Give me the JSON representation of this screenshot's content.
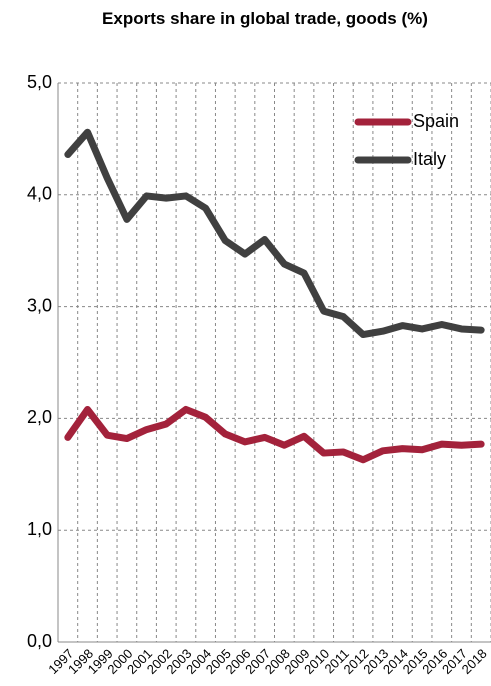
{
  "chart_data": {
    "type": "line",
    "title": "Exports share in global trade, goods (%)",
    "categories": [
      "1997",
      "1998",
      "1999",
      "2000",
      "2001",
      "2002",
      "2003",
      "2004",
      "2005",
      "2006",
      "2007",
      "2008",
      "2009",
      "2010",
      "2011",
      "2012",
      "2013",
      "2014",
      "2015",
      "2016",
      "2017",
      "2018"
    ],
    "series": [
      {
        "name": "Spain",
        "color": "#a3223b",
        "values": [
          1.83,
          2.08,
          1.85,
          1.82,
          1.9,
          1.95,
          2.08,
          2.01,
          1.86,
          1.79,
          1.83,
          1.76,
          1.84,
          1.69,
          1.7,
          1.63,
          1.71,
          1.73,
          1.72,
          1.77,
          1.76,
          1.77
        ]
      },
      {
        "name": "Italy",
        "color": "#404040",
        "values": [
          4.36,
          4.56,
          4.15,
          3.78,
          3.99,
          3.97,
          3.99,
          3.88,
          3.59,
          3.47,
          3.6,
          3.38,
          3.3,
          2.96,
          2.91,
          2.75,
          2.78,
          2.83,
          2.8,
          2.84,
          2.8,
          2.79
        ]
      }
    ],
    "ylim": [
      0,
      5
    ],
    "yticks": [
      {
        "value": 0,
        "label": "0,0"
      },
      {
        "value": 1,
        "label": "1,0"
      },
      {
        "value": 2,
        "label": "2,0"
      },
      {
        "value": 3,
        "label": "3,0"
      },
      {
        "value": 4,
        "label": "4,0"
      },
      {
        "value": 5,
        "label": "5,0"
      }
    ],
    "grid": true,
    "legend": "top-right"
  }
}
